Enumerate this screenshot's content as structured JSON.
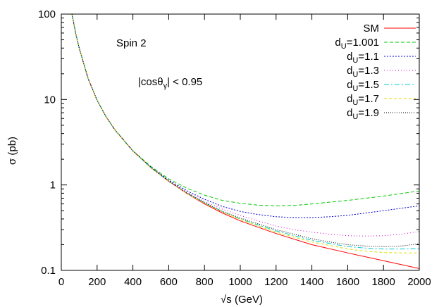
{
  "chart_data": {
    "type": "line",
    "xlabel": "√s  (GeV)",
    "ylabel": "σ  (pb)",
    "xlim": [
      0,
      2000
    ],
    "ylim": [
      0.1,
      100
    ],
    "yscale": "log",
    "grid": false,
    "legend_position": "top-right",
    "x_ticks": [
      0,
      200,
      400,
      600,
      800,
      1000,
      1200,
      1400,
      1600,
      1800,
      2000
    ],
    "y_ticks": [
      0.1,
      1,
      10,
      100
    ],
    "y_tick_labels": [
      "0.1",
      "1",
      "10",
      "100"
    ],
    "annotations": {
      "spin": "Spin 2",
      "cut_prefix": "|cosθ",
      "cut_sub": "γ",
      "cut_suffix": "| < 0.95"
    },
    "series": [
      {
        "legend_main": "SM",
        "legend_sub": "",
        "legend_value": "",
        "color": "#ff0000",
        "dash": "",
        "x": [
          60,
          80,
          100,
          150,
          200,
          250,
          300,
          400,
          500,
          600,
          700,
          800,
          900,
          1000,
          1200,
          1400,
          1600,
          1800,
          2000
        ],
        "y": [
          100,
          60,
          40,
          17.5,
          9.8,
          6.3,
          4.4,
          2.5,
          1.6,
          1.1,
          0.8,
          0.6,
          0.47,
          0.38,
          0.27,
          0.2,
          0.16,
          0.13,
          0.105
        ]
      },
      {
        "legend_main": "d",
        "legend_sub": "U",
        "legend_value": "=1.001",
        "color": "#00cc00",
        "dash": "5,3",
        "x": [
          60,
          80,
          100,
          150,
          200,
          250,
          300,
          400,
          500,
          600,
          700,
          800,
          900,
          1000,
          1100,
          1200,
          1300,
          1400,
          1600,
          1800,
          2000
        ],
        "y": [
          100,
          60,
          40,
          17.5,
          9.8,
          6.3,
          4.4,
          2.52,
          1.65,
          1.18,
          0.92,
          0.76,
          0.66,
          0.61,
          0.58,
          0.57,
          0.575,
          0.6,
          0.66,
          0.74,
          0.85
        ]
      },
      {
        "legend_main": "d",
        "legend_sub": "U",
        "legend_value": "=1.1",
        "color": "#0000cc",
        "dash": "2,2",
        "x": [
          60,
          80,
          100,
          150,
          200,
          250,
          300,
          400,
          500,
          600,
          700,
          800,
          900,
          1000,
          1100,
          1200,
          1300,
          1400,
          1500,
          1600,
          1800,
          2000
        ],
        "y": [
          100,
          60,
          40,
          17.5,
          9.8,
          6.3,
          4.4,
          2.51,
          1.62,
          1.14,
          0.86,
          0.68,
          0.56,
          0.49,
          0.45,
          0.425,
          0.415,
          0.415,
          0.425,
          0.44,
          0.5,
          0.57
        ]
      },
      {
        "legend_main": "d",
        "legend_sub": "U",
        "legend_value": "=1.3",
        "color": "#cc00cc",
        "dash": "1,3",
        "x": [
          60,
          80,
          100,
          150,
          200,
          250,
          300,
          400,
          500,
          600,
          700,
          800,
          900,
          1000,
          1100,
          1200,
          1300,
          1400,
          1500,
          1600,
          1700,
          1800,
          1900,
          2000
        ],
        "y": [
          100,
          60,
          40,
          17.5,
          9.8,
          6.3,
          4.4,
          2.5,
          1.61,
          1.12,
          0.83,
          0.64,
          0.52,
          0.44,
          0.38,
          0.33,
          0.3,
          0.28,
          0.265,
          0.255,
          0.252,
          0.255,
          0.265,
          0.285
        ]
      },
      {
        "legend_main": "d",
        "legend_sub": "U",
        "legend_value": "=1.5",
        "color": "#00cccc",
        "dash": "7,3,2,3",
        "x": [
          60,
          80,
          100,
          150,
          200,
          250,
          300,
          400,
          500,
          600,
          700,
          800,
          900,
          1000,
          1200,
          1400,
          1600,
          1700,
          1800,
          1900,
          2000
        ],
        "y": [
          100,
          60,
          40,
          17.5,
          9.8,
          6.3,
          4.4,
          2.5,
          1.6,
          1.11,
          0.81,
          0.62,
          0.49,
          0.4,
          0.29,
          0.225,
          0.19,
          0.182,
          0.178,
          0.178,
          0.18
        ]
      },
      {
        "legend_main": "d",
        "legend_sub": "U",
        "legend_value": "=1.7",
        "color": "#dddd00",
        "dash": "4,3",
        "x": [
          60,
          80,
          100,
          150,
          200,
          250,
          300,
          400,
          500,
          600,
          700,
          800,
          900,
          1000,
          1200,
          1400,
          1600,
          1700,
          1800,
          1900,
          2000
        ],
        "y": [
          100,
          60,
          40,
          17.5,
          9.8,
          6.3,
          4.4,
          2.5,
          1.6,
          1.1,
          0.8,
          0.61,
          0.485,
          0.395,
          0.28,
          0.215,
          0.178,
          0.168,
          0.162,
          0.16,
          0.16
        ]
      },
      {
        "legend_main": "d",
        "legend_sub": "U",
        "legend_value": "=1.9",
        "color": "#000000",
        "dash": "1,2",
        "x": [
          60,
          80,
          100,
          150,
          200,
          250,
          300,
          400,
          500,
          600,
          700,
          800,
          900,
          1000,
          1200,
          1400,
          1500,
          1600,
          1700,
          1800,
          1900,
          2000
        ],
        "y": [
          100,
          60,
          40,
          17.5,
          9.8,
          6.3,
          4.4,
          2.5,
          1.6,
          1.11,
          0.81,
          0.62,
          0.49,
          0.41,
          0.3,
          0.235,
          0.215,
          0.2,
          0.193,
          0.19,
          0.193,
          0.205
        ]
      }
    ]
  }
}
